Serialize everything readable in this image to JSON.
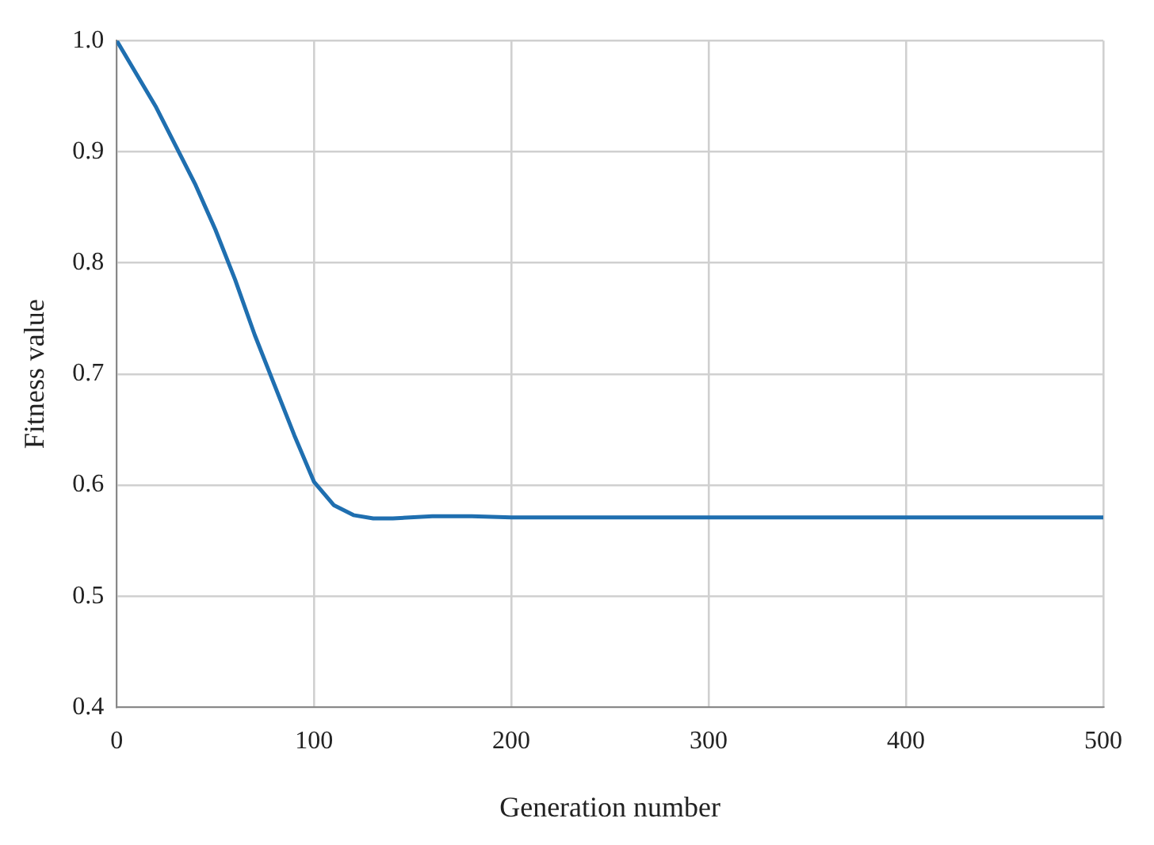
{
  "chart_data": {
    "type": "line",
    "xlabel": "Generation number",
    "ylabel": "Fitness value",
    "x": [
      0,
      10,
      20,
      30,
      40,
      50,
      60,
      70,
      80,
      90,
      100,
      110,
      120,
      130,
      140,
      160,
      180,
      200,
      300,
      400,
      500
    ],
    "series": [
      {
        "color": "#1f6fb0",
        "values": [
          1.0,
          0.97,
          0.94,
          0.905,
          0.87,
          0.83,
          0.785,
          0.735,
          0.69,
          0.645,
          0.603,
          0.582,
          0.573,
          0.57,
          0.57,
          0.572,
          0.572,
          0.571,
          0.571,
          0.571,
          0.571
        ]
      }
    ],
    "xlim": [
      0,
      500
    ],
    "xticks": [
      0,
      100,
      200,
      300,
      400,
      500
    ],
    "ylim": [
      0.4,
      1.0
    ],
    "yticks": [
      {
        "value": 0.4,
        "label": "0.4"
      },
      {
        "value": 0.5,
        "label": "0.5"
      },
      {
        "value": 0.6,
        "label": "0.6"
      },
      {
        "value": 0.7,
        "label": "0.7"
      },
      {
        "value": 0.8,
        "label": "0.8"
      },
      {
        "value": 0.9,
        "label": "0.9"
      },
      {
        "value": 1.0,
        "label": "1.0"
      }
    ],
    "grid": true,
    "legend": false,
    "marker": "none",
    "line_style": "solid"
  }
}
